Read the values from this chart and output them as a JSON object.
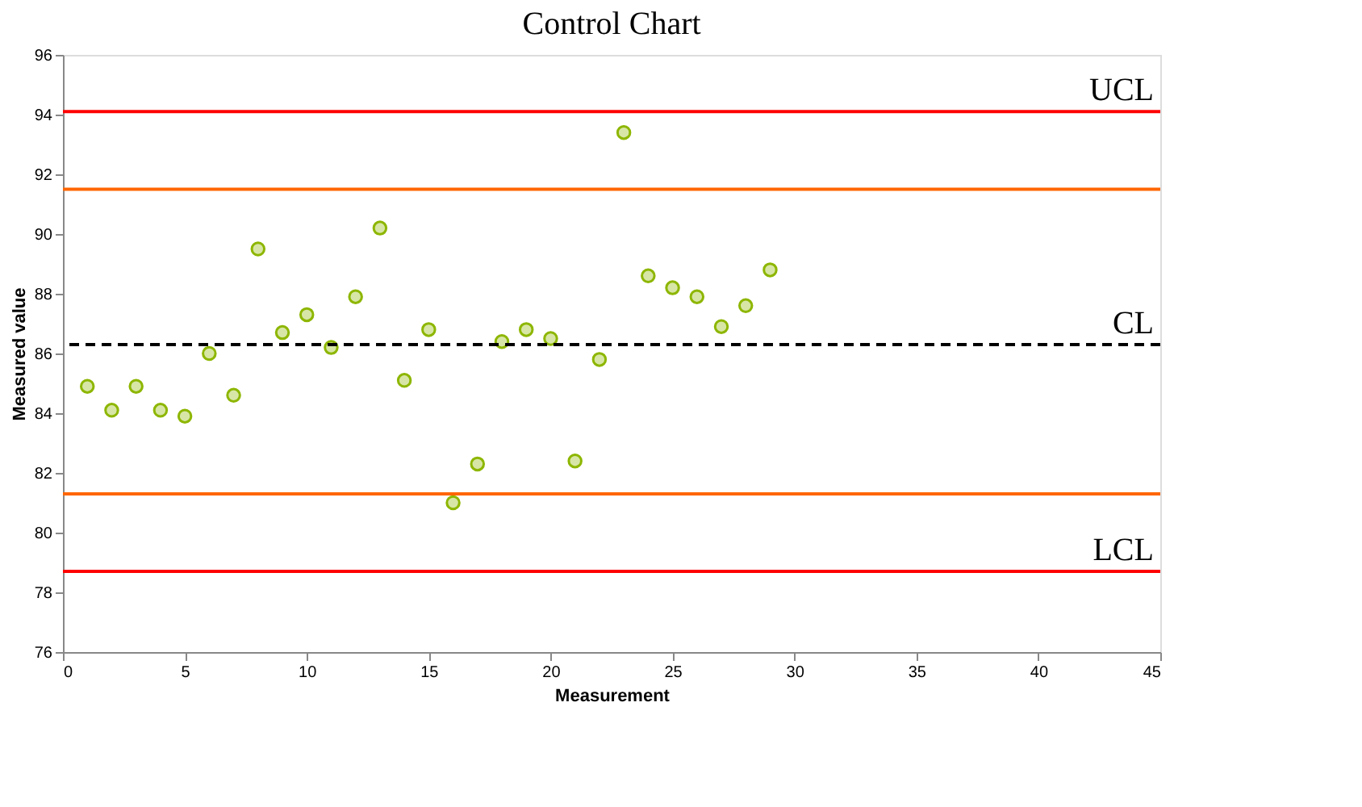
{
  "chart_data": {
    "type": "scatter",
    "title": "Control Chart",
    "xlabel": "Measurement",
    "ylabel": "Measured value",
    "x": [
      1,
      2,
      3,
      4,
      5,
      6,
      7,
      8,
      9,
      10,
      11,
      12,
      13,
      14,
      15,
      16,
      17,
      18,
      19,
      20,
      21,
      22,
      23,
      24,
      25,
      26,
      27,
      28,
      29
    ],
    "series": [
      {
        "color": "#8db600",
        "values": [
          84.9,
          84.1,
          84.9,
          84.1,
          83.9,
          86.0,
          84.6,
          89.5,
          86.7,
          87.3,
          86.2,
          87.9,
          90.2,
          85.1,
          86.8,
          81.0,
          82.3,
          86.4,
          86.8,
          86.5,
          82.4,
          85.8,
          93.4,
          88.6,
          88.2,
          87.9,
          86.9,
          87.6,
          88.8
        ]
      }
    ],
    "marker": "circle",
    "grid": false,
    "legend": false,
    "xlim": [
      0,
      45
    ],
    "xticks": [
      0,
      5,
      10,
      15,
      20,
      25,
      30,
      35,
      40,
      45
    ],
    "ylim": [
      76,
      96
    ],
    "yticks": [
      76,
      78,
      80,
      82,
      84,
      86,
      88,
      90,
      92,
      94,
      96
    ],
    "ref_lines": [
      {
        "axis": "y",
        "value": 94.1,
        "label": "UCL",
        "color": "#ff0000",
        "line_style": "solid"
      },
      {
        "axis": "y",
        "value": 91.5,
        "label": null,
        "color": "#ff6600",
        "line_style": "solid"
      },
      {
        "axis": "y",
        "value": 86.3,
        "label": "CL",
        "color": "#000000",
        "line_style": "dashed"
      },
      {
        "axis": "y",
        "value": 81.3,
        "label": null,
        "color": "#ff6600",
        "line_style": "solid"
      },
      {
        "axis": "y",
        "value": 78.7,
        "label": "LCL",
        "color": "#ff0000",
        "line_style": "solid"
      }
    ]
  }
}
